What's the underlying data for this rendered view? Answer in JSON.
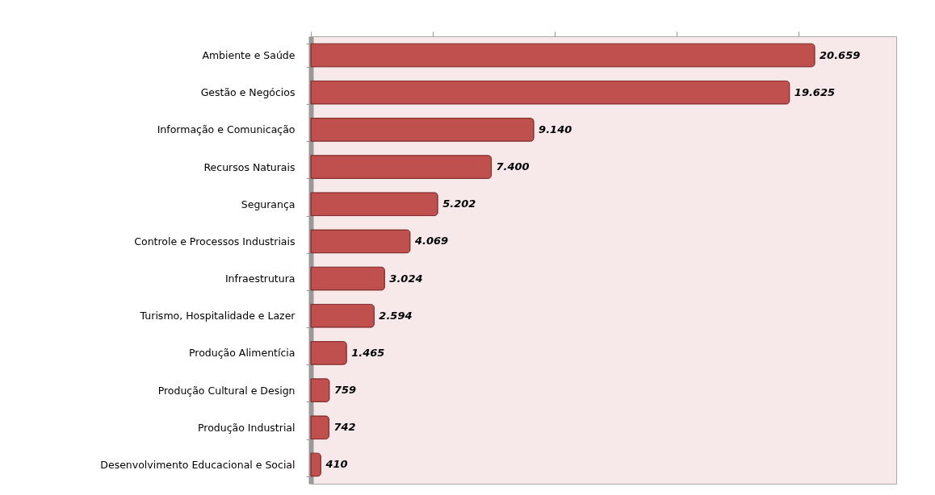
{
  "chart_data": {
    "type": "bar",
    "orientation": "horizontal",
    "categories": [
      "Ambiente e Saúde",
      "Gestão e Negócios",
      "Informação e Comunicação",
      "Recursos Naturais",
      "Segurança",
      "Controle e Processos Industriais",
      "Infraestrutura",
      "Turismo, Hospitalidade e Lazer",
      "Produção Alimentícia",
      "Produção Cultural e Design",
      "Produção Industrial",
      "Desenvolvimento Educacional e Social"
    ],
    "values": [
      20659,
      19625,
      9140,
      7400,
      5202,
      4069,
      3024,
      2594,
      1465,
      759,
      742,
      410
    ],
    "value_labels": [
      "20.659",
      "19.625",
      "9.140",
      "7.400",
      "5.202",
      "4.069",
      "3.024",
      "2.594",
      "1.465",
      "759",
      "742",
      "410"
    ],
    "color": "#c0504d",
    "xlim": [
      0,
      24000
    ],
    "xticks": [
      {
        "value": 0,
        "label": null
      },
      {
        "value": 5000,
        "label": null
      },
      {
        "value": 10000,
        "label": null
      },
      {
        "value": 15000,
        "label": null
      },
      {
        "value": 20000,
        "label": null
      }
    ],
    "tick_labels": "y",
    "grid": false
  }
}
